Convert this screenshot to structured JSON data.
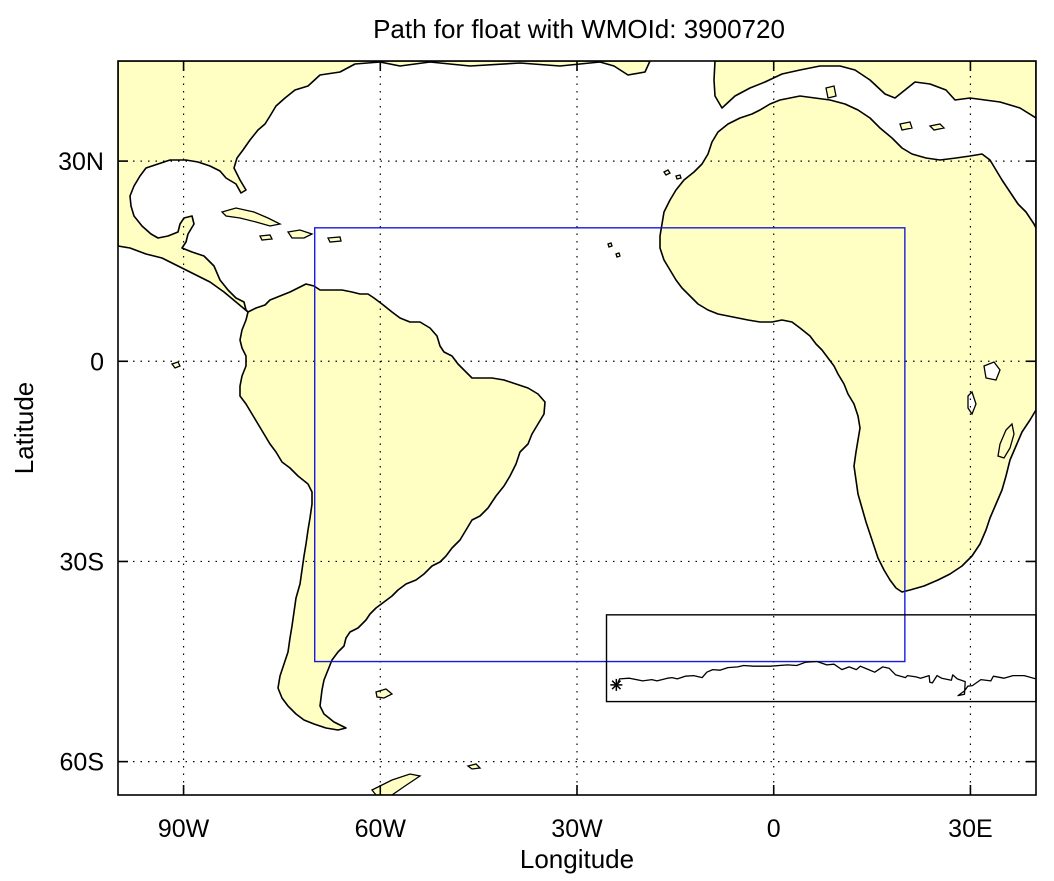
{
  "title": "Path for float with WMOId: 3900720",
  "xlabel": "Longitude",
  "ylabel": "Latitude",
  "x_ticks": [
    {
      "value": -90,
      "label": "90W"
    },
    {
      "value": -60,
      "label": "60W"
    },
    {
      "value": -30,
      "label": "30W"
    },
    {
      "value": 0,
      "label": "0"
    },
    {
      "value": 30,
      "label": "30E"
    }
  ],
  "y_ticks": [
    {
      "value": 30,
      "label": "30N"
    },
    {
      "value": 0,
      "label": "0"
    },
    {
      "value": -30,
      "label": "30S"
    },
    {
      "value": -60,
      "label": "60S"
    }
  ],
  "map_extent": {
    "lon": [
      -100,
      40
    ],
    "lat": [
      -65,
      45
    ]
  },
  "grid": true,
  "colors": {
    "land": "#ffffc4",
    "ocean": "#ffffff",
    "region_box": "#1a1adc",
    "track": "#000000"
  },
  "region_box": {
    "lon": [
      -70,
      20
    ],
    "lat": [
      -45,
      20
    ]
  },
  "float_track_box": {
    "lon": [
      -25.5,
      40
    ],
    "lat": [
      -51,
      -38
    ]
  },
  "float_track": [
    [
      -23.9,
      -48.5
    ],
    [
      -23.5,
      -47.6
    ],
    [
      -22,
      -47.5
    ],
    [
      -20,
      -47.9
    ],
    [
      -18.6,
      -47.7
    ],
    [
      -17.8,
      -47.9
    ],
    [
      -16.2,
      -47.5
    ],
    [
      -15.5,
      -47.4
    ],
    [
      -14.7,
      -47.6
    ],
    [
      -13.5,
      -47.2
    ],
    [
      -12.2,
      -47.1
    ],
    [
      -10.9,
      -47.4
    ],
    [
      -10.2,
      -46.6
    ],
    [
      -9.3,
      -46.2
    ],
    [
      -8.2,
      -46.3
    ],
    [
      -7,
      -45.9
    ],
    [
      -5.5,
      -45.8
    ],
    [
      -4.6,
      -45.6
    ],
    [
      -3.1,
      -45.7
    ],
    [
      -0.5,
      -45.7
    ],
    [
      2.1,
      -45.5
    ],
    [
      3.5,
      -45.6
    ],
    [
      4.9,
      -45.1
    ],
    [
      6.6,
      -45
    ],
    [
      8.1,
      -45.5
    ],
    [
      9.2,
      -45.4
    ],
    [
      10.4,
      -46.2
    ],
    [
      11.5,
      -45.8
    ],
    [
      12.6,
      -46.2
    ],
    [
      13.2,
      -45.7
    ],
    [
      14.2,
      -46.1
    ],
    [
      15.4,
      -46.6
    ],
    [
      16.6,
      -45.8
    ],
    [
      17.6,
      -46
    ],
    [
      18.6,
      -47
    ],
    [
      20.1,
      -47.4
    ],
    [
      20.4,
      -47.1
    ],
    [
      21.7,
      -47.3
    ],
    [
      22.4,
      -47.5
    ],
    [
      23.7,
      -47.1
    ],
    [
      23.8,
      -48.1
    ],
    [
      24.2,
      -48.2
    ],
    [
      24.9,
      -47.1
    ],
    [
      25.6,
      -47.5
    ],
    [
      27.1,
      -47.8
    ],
    [
      27.3,
      -47
    ],
    [
      28,
      -47.6
    ],
    [
      29.2,
      -48
    ],
    [
      29.1,
      -49.9
    ],
    [
      28.1,
      -50.1
    ],
    [
      29.1,
      -49.4
    ],
    [
      29.6,
      -48.7
    ],
    [
      30.3,
      -48.6
    ],
    [
      31.6,
      -47.7
    ],
    [
      33.1,
      -47.9
    ],
    [
      33.5,
      -47.2
    ],
    [
      35.1,
      -47.5
    ],
    [
      36.5,
      -47.1
    ],
    [
      38.2,
      -47.1
    ],
    [
      40,
      -47.6
    ]
  ],
  "start_position": [
    -24,
    -48.5
  ]
}
